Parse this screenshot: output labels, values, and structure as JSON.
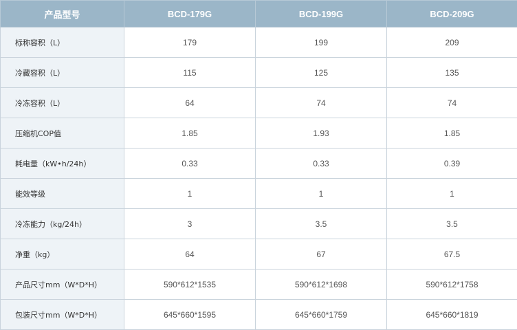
{
  "table": {
    "header": [
      "产品型号",
      "BCD-179G",
      "BCD-199G",
      "BCD-209G"
    ],
    "rows": [
      {
        "label": "标称容积（L）",
        "values": [
          "179",
          "199",
          "209"
        ]
      },
      {
        "label": "冷藏容积（L）",
        "values": [
          "115",
          "125",
          "135"
        ]
      },
      {
        "label": "冷冻容积（L）",
        "values": [
          "64",
          "74",
          "74"
        ]
      },
      {
        "label": "压缩机COP值",
        "values": [
          "1.85",
          "1.93",
          "1.85"
        ]
      },
      {
        "label": "耗电量（kW•h/24h）",
        "values": [
          "0.33",
          "0.33",
          "0.39"
        ]
      },
      {
        "label": "能效等级",
        "values": [
          "1",
          "1",
          "1"
        ]
      },
      {
        "label": "冷冻能力（kg/24h）",
        "values": [
          "3",
          "3.5",
          "3.5"
        ]
      },
      {
        "label": "净重（kg）",
        "values": [
          "64",
          "67",
          "67.5"
        ]
      },
      {
        "label": "产品尺寸mm（W*D*H）",
        "values": [
          "590*612*1535",
          "590*612*1698",
          "590*612*1758"
        ]
      },
      {
        "label": "包装尺寸mm（W*D*H）",
        "values": [
          "645*660*1595",
          "645*660*1759",
          "645*660*1819"
        ]
      }
    ]
  },
  "colors": {
    "header_bg": "#9bb6c8",
    "header_text": "#ffffff",
    "label_bg": "#eef3f7",
    "border": "#c9d3dc"
  }
}
